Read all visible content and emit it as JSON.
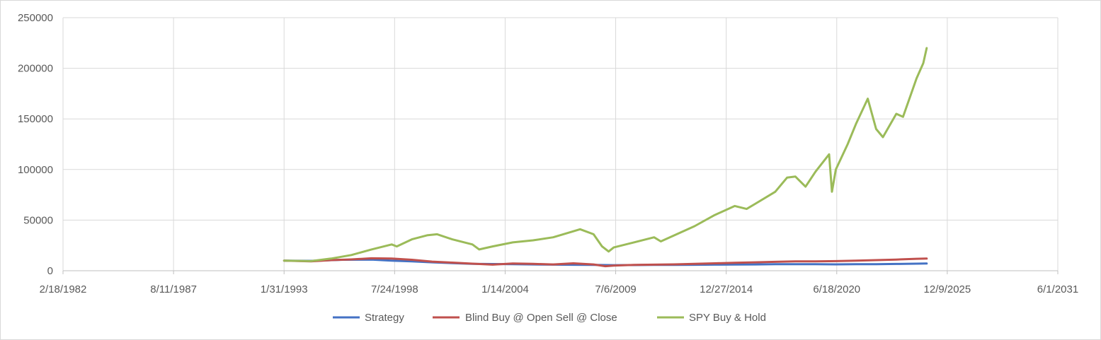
{
  "chart_data": {
    "type": "line",
    "title": "",
    "xlabel": "",
    "ylabel": "",
    "x_axis_type": "date",
    "xlim": [
      "1982-02-18",
      "2031-06-01"
    ],
    "ylim": [
      0,
      250000
    ],
    "grid": true,
    "legend_position": "bottom",
    "x_tick_labels": [
      "2/18/1982",
      "8/11/1987",
      "1/31/1993",
      "7/24/1998",
      "1/14/2004",
      "7/6/2009",
      "12/27/2014",
      "6/18/2020",
      "12/9/2025",
      "6/1/2031"
    ],
    "x_tick_dates": [
      "1982-02-18",
      "1987-08-11",
      "1993-01-31",
      "1998-07-24",
      "2004-01-14",
      "2009-07-06",
      "2014-12-27",
      "2020-06-18",
      "2025-12-09",
      "2031-06-01"
    ],
    "y_ticks": [
      0,
      50000,
      100000,
      150000,
      200000,
      250000
    ],
    "y_tick_labels": [
      "0",
      "50000",
      "100000",
      "150000",
      "200000",
      "250000"
    ],
    "series": [
      {
        "name": "Strategy",
        "color": "#4472c4",
        "points": [
          [
            "1993-02-01",
            10000
          ],
          [
            "1994-06-01",
            9800
          ],
          [
            "1996-01-01",
            10800
          ],
          [
            "1997-06-01",
            11000
          ],
          [
            "1998-06-01",
            10000
          ],
          [
            "1999-06-01",
            9200
          ],
          [
            "2000-06-01",
            8300
          ],
          [
            "2001-06-01",
            7500
          ],
          [
            "2002-06-01",
            6800
          ],
          [
            "2003-06-01",
            6600
          ],
          [
            "2004-06-01",
            6500
          ],
          [
            "2005-06-01",
            6200
          ],
          [
            "2006-06-01",
            6000
          ],
          [
            "2007-06-01",
            5900
          ],
          [
            "2008-06-01",
            5700
          ],
          [
            "2009-06-01",
            5500
          ],
          [
            "2010-06-01",
            5600
          ],
          [
            "2011-06-01",
            5700
          ],
          [
            "2012-06-01",
            5800
          ],
          [
            "2013-06-01",
            5900
          ],
          [
            "2014-06-01",
            6000
          ],
          [
            "2015-06-01",
            6100
          ],
          [
            "2016-06-01",
            6200
          ],
          [
            "2017-06-01",
            6400
          ],
          [
            "2018-06-01",
            6500
          ],
          [
            "2019-06-01",
            6400
          ],
          [
            "2020-06-01",
            6300
          ],
          [
            "2021-06-01",
            6400
          ],
          [
            "2022-06-01",
            6500
          ],
          [
            "2023-06-01",
            6700
          ],
          [
            "2024-06-01",
            7000
          ],
          [
            "2024-12-01",
            7100
          ]
        ]
      },
      {
        "name": "Blind Buy @ Open  Sell @ Close",
        "color": "#c0504d",
        "points": [
          [
            "1993-02-01",
            10000
          ],
          [
            "1994-06-01",
            9300
          ],
          [
            "1995-06-01",
            10500
          ],
          [
            "1996-06-01",
            11200
          ],
          [
            "1997-06-01",
            12300
          ],
          [
            "1998-06-01",
            12000
          ],
          [
            "1999-06-01",
            10800
          ],
          [
            "2000-06-01",
            9000
          ],
          [
            "2001-06-01",
            8000
          ],
          [
            "2002-06-01",
            7000
          ],
          [
            "2003-06-01",
            6000
          ],
          [
            "2004-06-01",
            7200
          ],
          [
            "2005-06-01",
            6800
          ],
          [
            "2006-06-01",
            6200
          ],
          [
            "2007-06-01",
            7300
          ],
          [
            "2008-06-01",
            6200
          ],
          [
            "2009-01-01",
            4500
          ],
          [
            "2009-06-01",
            5000
          ],
          [
            "2010-06-01",
            5800
          ],
          [
            "2011-06-01",
            6000
          ],
          [
            "2012-06-01",
            6300
          ],
          [
            "2013-06-01",
            6800
          ],
          [
            "2014-06-01",
            7300
          ],
          [
            "2015-06-01",
            7800
          ],
          [
            "2016-06-01",
            8300
          ],
          [
            "2017-06-01",
            8800
          ],
          [
            "2018-06-01",
            9200
          ],
          [
            "2019-06-01",
            9200
          ],
          [
            "2020-06-01",
            9500
          ],
          [
            "2021-06-01",
            10000
          ],
          [
            "2022-06-01",
            10500
          ],
          [
            "2023-06-01",
            11000
          ],
          [
            "2024-06-01",
            11800
          ],
          [
            "2024-12-01",
            12000
          ]
        ]
      },
      {
        "name": "SPY Buy & Hold",
        "color": "#9bbb59",
        "points": [
          [
            "1993-02-01",
            10000
          ],
          [
            "1994-06-01",
            9500
          ],
          [
            "1995-06-01",
            12000
          ],
          [
            "1996-06-01",
            15500
          ],
          [
            "1997-06-01",
            21000
          ],
          [
            "1998-06-01",
            26000
          ],
          [
            "1998-09-01",
            24000
          ],
          [
            "1999-06-01",
            31000
          ],
          [
            "2000-03-01",
            35000
          ],
          [
            "2000-09-01",
            36000
          ],
          [
            "2001-06-01",
            31000
          ],
          [
            "2002-06-01",
            26000
          ],
          [
            "2002-10-01",
            21000
          ],
          [
            "2003-06-01",
            24000
          ],
          [
            "2004-06-01",
            28000
          ],
          [
            "2005-06-01",
            30000
          ],
          [
            "2006-06-01",
            33000
          ],
          [
            "2007-06-01",
            39000
          ],
          [
            "2007-10-01",
            41000
          ],
          [
            "2008-06-01",
            36000
          ],
          [
            "2008-11-01",
            24000
          ],
          [
            "2009-03-01",
            19000
          ],
          [
            "2009-06-01",
            23000
          ],
          [
            "2010-06-01",
            28000
          ],
          [
            "2011-06-01",
            33000
          ],
          [
            "2011-10-01",
            29000
          ],
          [
            "2012-06-01",
            35000
          ],
          [
            "2013-06-01",
            44000
          ],
          [
            "2014-06-01",
            55000
          ],
          [
            "2015-06-01",
            64000
          ],
          [
            "2016-01-01",
            61000
          ],
          [
            "2016-06-01",
            66000
          ],
          [
            "2017-06-01",
            78000
          ],
          [
            "2018-01-01",
            92000
          ],
          [
            "2018-06-01",
            93000
          ],
          [
            "2018-12-01",
            83000
          ],
          [
            "2019-06-01",
            98000
          ],
          [
            "2020-02-01",
            115000
          ],
          [
            "2020-03-23",
            78000
          ],
          [
            "2020-06-01",
            100000
          ],
          [
            "2021-01-01",
            125000
          ],
          [
            "2021-06-01",
            145000
          ],
          [
            "2022-01-01",
            170000
          ],
          [
            "2022-06-01",
            140000
          ],
          [
            "2022-10-01",
            132000
          ],
          [
            "2023-06-01",
            155000
          ],
          [
            "2023-10-01",
            152000
          ],
          [
            "2024-06-01",
            190000
          ],
          [
            "2024-10-01",
            205000
          ],
          [
            "2024-12-01",
            220000
          ]
        ]
      }
    ]
  }
}
